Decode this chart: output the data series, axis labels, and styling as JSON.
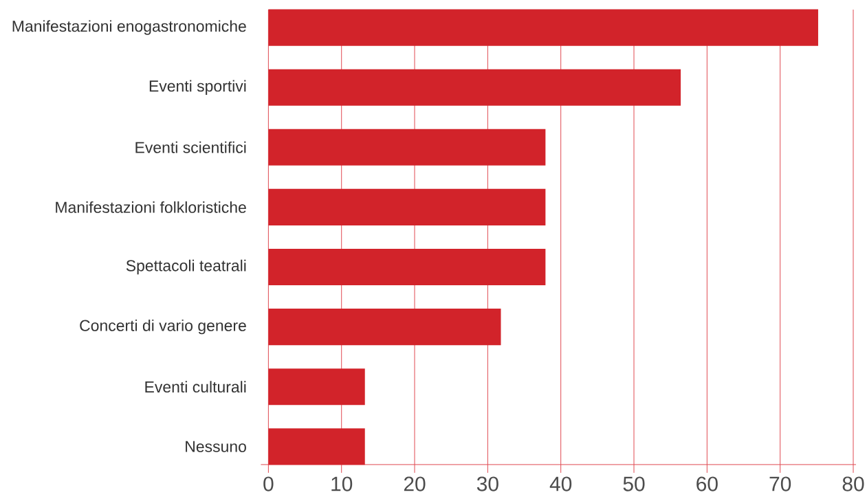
{
  "chart_data": {
    "type": "bar",
    "orientation": "horizontal",
    "categories": [
      "Manifestazioni enogastronomiche",
      "Eventi sportivi",
      "Eventi scientifici",
      "Manifestazioni folkloristiche",
      "Spettacoli teatrali",
      "Concerti di vario genere",
      "Eventi culturali",
      "Nessuno"
    ],
    "values": [
      75.2,
      56.4,
      37.9,
      37.9,
      37.9,
      31.8,
      13.2,
      13.2
    ],
    "color": "#d2232a",
    "xlim": [
      0,
      80
    ],
    "xticks": [
      0,
      10,
      20,
      30,
      40,
      50,
      60,
      70,
      80
    ],
    "grid": "x"
  }
}
